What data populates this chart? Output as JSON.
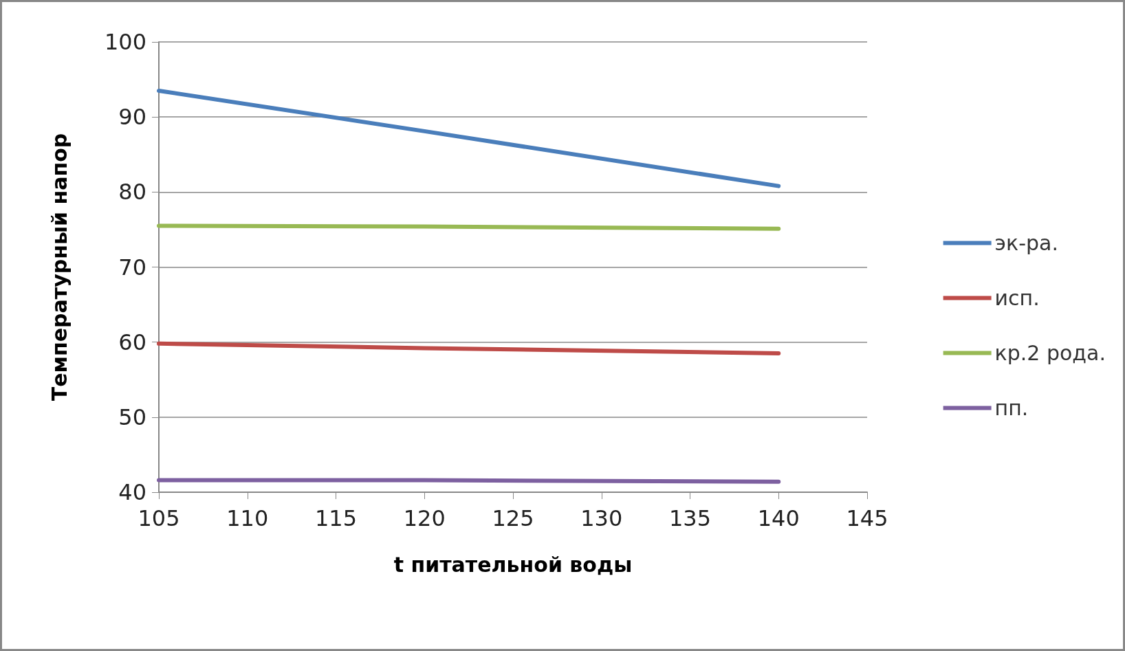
{
  "chart_data": {
    "type": "line",
    "xlabel": "t питательной воды",
    "ylabel": "Температурный напор",
    "x": [
      105,
      120,
      140
    ],
    "series": [
      {
        "name": "эк-ра.",
        "color": "#4a7ebb",
        "values": [
          93.5,
          88.1,
          80.8
        ]
      },
      {
        "name": "исп.",
        "color": "#be4b48",
        "values": [
          59.8,
          59.2,
          58.5
        ]
      },
      {
        "name": "кр.2 рода.",
        "color": "#98b954",
        "values": [
          75.5,
          75.4,
          75.1
        ]
      },
      {
        "name": "пп.",
        "color": "#7d60a0",
        "values": [
          41.6,
          41.6,
          41.4
        ]
      }
    ],
    "xlim": [
      105,
      145
    ],
    "xticks": [
      105,
      110,
      115,
      120,
      125,
      130,
      135,
      140,
      145
    ],
    "ylim": [
      40,
      100
    ],
    "yticks": [
      40,
      50,
      60,
      70,
      80,
      90,
      100
    ],
    "grid": "y",
    "legend": "right",
    "marker": "none",
    "line_style": "solid"
  }
}
